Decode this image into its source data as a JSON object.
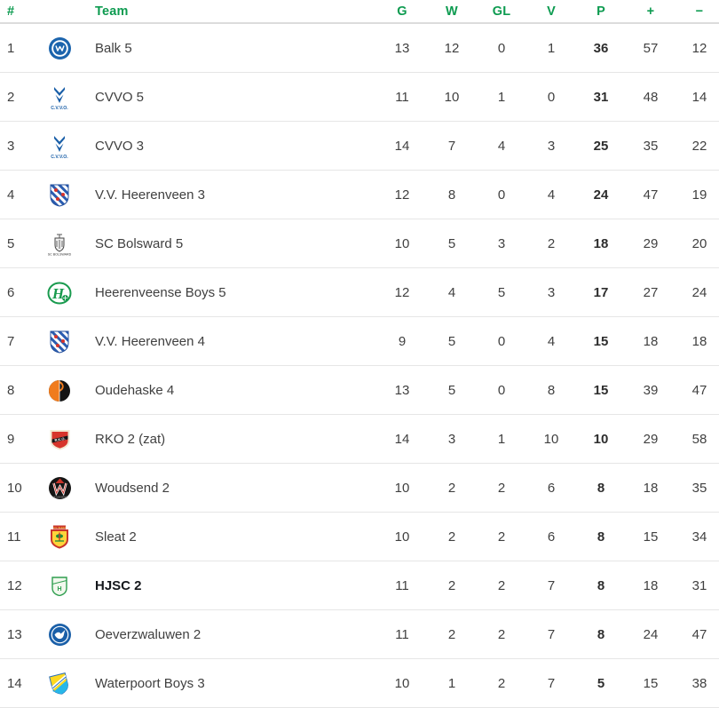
{
  "colors": {
    "header_green": "#0d9b50",
    "body_text": "#404040",
    "points_bold": "#2d2d2d",
    "highlight_text": "#15181c",
    "row_divider": "#e6e6e6",
    "header_divider": "#dcdcdc"
  },
  "table": {
    "columns": [
      {
        "key": "pos",
        "label": "#"
      },
      {
        "key": "team",
        "label": "Team"
      },
      {
        "key": "g",
        "label": "G"
      },
      {
        "key": "w",
        "label": "W"
      },
      {
        "key": "gl",
        "label": "GL"
      },
      {
        "key": "v",
        "label": "V"
      },
      {
        "key": "p",
        "label": "P"
      },
      {
        "key": "plus",
        "label": "+"
      },
      {
        "key": "minus",
        "label": "−"
      }
    ],
    "rows": [
      {
        "pos": 1,
        "team": "Balk 5",
        "crest_icon": "balk-crest-icon",
        "logo": "balk",
        "g": 13,
        "w": 12,
        "gl": 0,
        "v": 1,
        "p": 36,
        "plus": 57,
        "minus": 12,
        "highlight": false
      },
      {
        "pos": 2,
        "team": "CVVO 5",
        "crest_icon": "cvvo-crest-icon",
        "logo": "cvvo",
        "g": 11,
        "w": 10,
        "gl": 1,
        "v": 0,
        "p": 31,
        "plus": 48,
        "minus": 14,
        "highlight": false
      },
      {
        "pos": 3,
        "team": "CVVO 3",
        "crest_icon": "cvvo-crest-icon",
        "logo": "cvvo",
        "g": 14,
        "w": 7,
        "gl": 4,
        "v": 3,
        "p": 25,
        "plus": 35,
        "minus": 22,
        "highlight": false
      },
      {
        "pos": 4,
        "team": "V.V. Heerenveen 3",
        "crest_icon": "heerenveen-crest-icon",
        "logo": "heerenveen",
        "g": 12,
        "w": 8,
        "gl": 0,
        "v": 4,
        "p": 24,
        "plus": 47,
        "minus": 19,
        "highlight": false
      },
      {
        "pos": 5,
        "team": "SC Bolsward 5",
        "crest_icon": "bolsward-crest-icon",
        "logo": "bolsward",
        "g": 10,
        "w": 5,
        "gl": 3,
        "v": 2,
        "p": 18,
        "plus": 29,
        "minus": 20,
        "highlight": false
      },
      {
        "pos": 6,
        "team": "Heerenveense Boys 5",
        "crest_icon": "heerenveense-boys-crest-icon",
        "logo": "hboys",
        "g": 12,
        "w": 4,
        "gl": 5,
        "v": 3,
        "p": 17,
        "plus": 27,
        "minus": 24,
        "highlight": false
      },
      {
        "pos": 7,
        "team": "V.V. Heerenveen 4",
        "crest_icon": "heerenveen-crest-icon",
        "logo": "heerenveen",
        "g": 9,
        "w": 5,
        "gl": 0,
        "v": 4,
        "p": 15,
        "plus": 18,
        "minus": 18,
        "highlight": false
      },
      {
        "pos": 8,
        "team": "Oudehaske 4",
        "crest_icon": "oudehaske-crest-icon",
        "logo": "oudehaske",
        "g": 13,
        "w": 5,
        "gl": 0,
        "v": 8,
        "p": 15,
        "plus": 39,
        "minus": 47,
        "highlight": false
      },
      {
        "pos": 9,
        "team": "RKO 2 (zat)",
        "crest_icon": "rko-crest-icon",
        "logo": "rko",
        "g": 14,
        "w": 3,
        "gl": 1,
        "v": 10,
        "p": 10,
        "plus": 29,
        "minus": 58,
        "highlight": false
      },
      {
        "pos": 10,
        "team": "Woudsend 2",
        "crest_icon": "woudsend-crest-icon",
        "logo": "woudsend",
        "g": 10,
        "w": 2,
        "gl": 2,
        "v": 6,
        "p": 8,
        "plus": 18,
        "minus": 35,
        "highlight": false
      },
      {
        "pos": 11,
        "team": "Sleat 2",
        "crest_icon": "sleat-crest-icon",
        "logo": "sleat",
        "g": 10,
        "w": 2,
        "gl": 2,
        "v": 6,
        "p": 8,
        "plus": 15,
        "minus": 34,
        "highlight": false
      },
      {
        "pos": 12,
        "team": "HJSC 2",
        "crest_icon": "hjsc-crest-icon",
        "logo": "hjsc",
        "g": 11,
        "w": 2,
        "gl": 2,
        "v": 7,
        "p": 8,
        "plus": 18,
        "minus": 31,
        "highlight": true
      },
      {
        "pos": 13,
        "team": "Oeverzwaluwen 2",
        "crest_icon": "oeverzwaluwen-crest-icon",
        "logo": "oeverzwaluwen",
        "g": 11,
        "w": 2,
        "gl": 2,
        "v": 7,
        "p": 8,
        "plus": 24,
        "minus": 47,
        "highlight": false
      },
      {
        "pos": 14,
        "team": "Waterpoort Boys 3",
        "crest_icon": "waterpoort-boys-crest-icon",
        "logo": "waterpoort",
        "g": 10,
        "w": 1,
        "gl": 2,
        "v": 7,
        "p": 5,
        "plus": 15,
        "minus": 38,
        "highlight": false
      }
    ]
  }
}
